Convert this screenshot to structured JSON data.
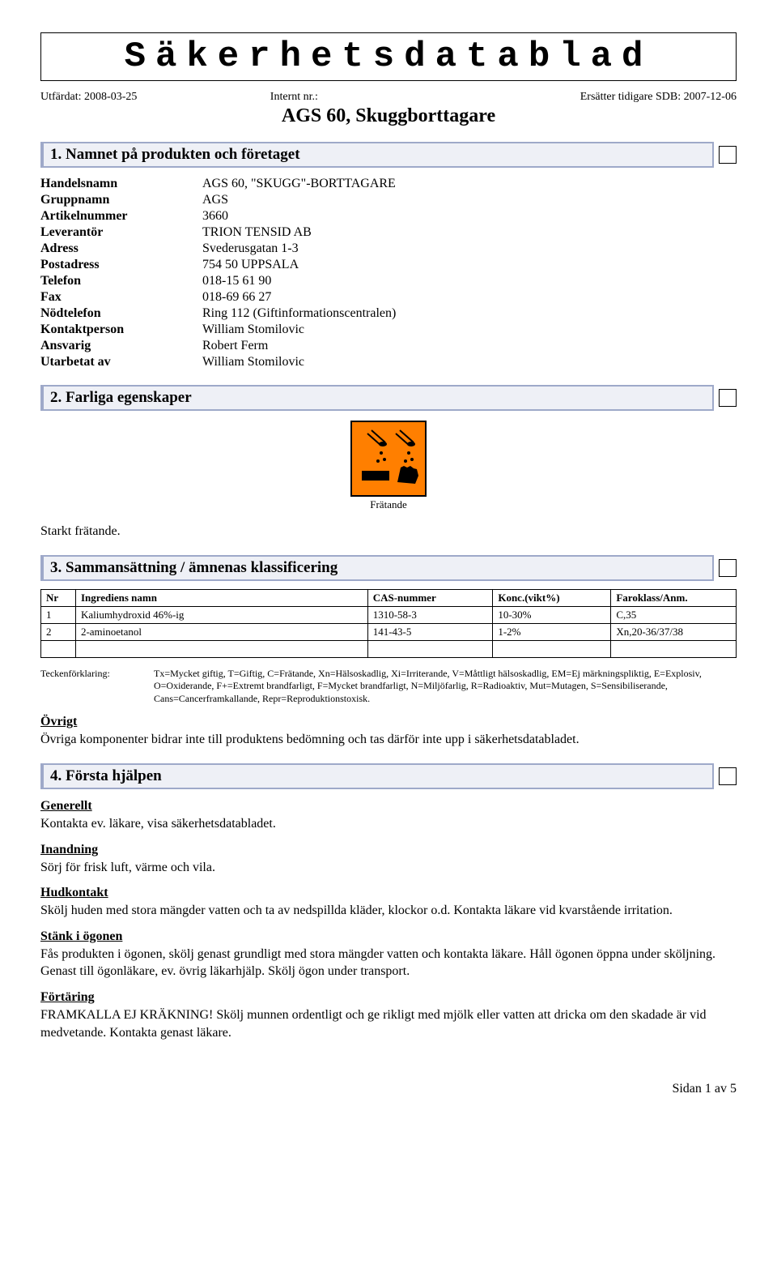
{
  "colors": {
    "section_border": "#9ea9c9",
    "section_bg": "#eef0f6",
    "hazard_bg": "#ff7f00"
  },
  "title": "Säkerhetsdatablad",
  "meta": {
    "issued_label": "Utfärdat: 2008-03-25",
    "internal_label": "Internt nr.:",
    "replaces_label": "Ersätter tidigare SDB: 2007-12-06"
  },
  "product_name": "AGS 60, Skuggborttagare",
  "sections": {
    "s1": {
      "title": "1. Namnet på produkten och företaget",
      "rows": [
        {
          "label": "Handelsnamn",
          "value": "AGS 60, \"SKUGG\"-BORTTAGARE"
        },
        {
          "label": "Gruppnamn",
          "value": "AGS"
        },
        {
          "label": "Artikelnummer",
          "value": "3660"
        },
        {
          "label": "Leverantör",
          "value": "TRION TENSID AB"
        },
        {
          "label": "Adress",
          "value": "Svederusgatan 1-3"
        },
        {
          "label": "Postadress",
          "value": "754 50 UPPSALA"
        },
        {
          "label": "Telefon",
          "value": "018-15 61 90"
        },
        {
          "label": "Fax",
          "value": "018-69 66 27"
        },
        {
          "label": "Nödtelefon",
          "value": "Ring 112 (Giftinformationscentralen)"
        },
        {
          "label": "Kontaktperson",
          "value": "William Stomilovic"
        },
        {
          "label": "Ansvarig",
          "value": "Robert Ferm"
        },
        {
          "label": "Utarbetat av",
          "value": "William Stomilovic"
        }
      ]
    },
    "s2": {
      "title": "2. Farliga egenskaper",
      "hazard_caption": "Frätande",
      "body": "Starkt frätande."
    },
    "s3": {
      "title": "3. Sammansättning / ämnenas klassificering",
      "table": {
        "headers": [
          "Nr",
          "Ingrediens namn",
          "CAS-nummer",
          "Konc.(vikt%)",
          "Faroklass/Anm."
        ],
        "col_widths": [
          "5%",
          "42%",
          "18%",
          "17%",
          "18%"
        ],
        "rows": [
          [
            "1",
            "Kaliumhydroxid 46%-ig",
            "1310-58-3",
            "10-30%",
            "C,35"
          ],
          [
            "2",
            "2-aminoetanol",
            "141-43-5",
            "1-2%",
            "Xn,20-36/37/38"
          ],
          [
            "",
            "",
            "",
            "",
            ""
          ]
        ]
      },
      "legend_label": "Teckenförklaring:",
      "legend_text": "Tx=Mycket giftig, T=Giftig, C=Frätande, Xn=Hälsoskadlig, Xi=Irriterande, V=Måttligt hälsoskadlig, EM=Ej märkningspliktig, E=Explosiv, O=Oxiderande, F+=Extremt brandfarligt, F=Mycket brandfarligt, N=Miljöfarlig, R=Radioaktiv, Mut=Mutagen, S=Sensibiliserande, Cans=Cancerframkallande, Repr=Reproduktionstoxisk.",
      "ovrigt_label": "Övrigt",
      "ovrigt_text": "Övriga komponenter bidrar inte till produktens bedömning och tas därför inte upp i säkerhetsdatabladet."
    },
    "s4": {
      "title": "4. Första hjälpen",
      "items": [
        {
          "heading": "Generellt",
          "text": "Kontakta ev. läkare, visa säkerhetsdatabladet."
        },
        {
          "heading": "Inandning",
          "text": "Sörj för frisk luft, värme och vila."
        },
        {
          "heading": "Hudkontakt",
          "text": "Skölj huden med stora mängder vatten och ta av nedspillda kläder, klockor o.d. Kontakta läkare vid kvarstående irritation."
        },
        {
          "heading": "Stänk i ögonen",
          "text": "Fås produkten i ögonen, skölj genast grundligt med stora mängder vatten och kontakta läkare. Håll ögonen öppna under sköljning. Genast till ögonläkare, ev. övrig läkarhjälp. Skölj ögon under transport."
        },
        {
          "heading": "Förtäring",
          "text": "FRAMKALLA EJ KRÄKNING! Skölj munnen ordentligt och ge rikligt med mjölk eller vatten att dricka om den skadade är vid medvetande. Kontakta genast läkare."
        }
      ]
    }
  },
  "footer": "Sidan 1 av 5"
}
